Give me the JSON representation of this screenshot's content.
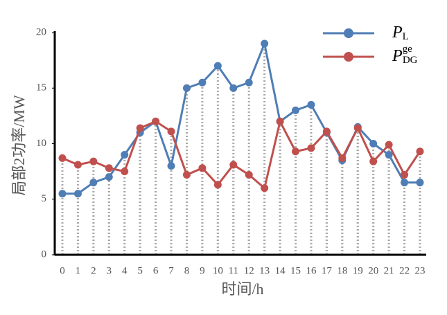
{
  "chart_data": {
    "type": "line",
    "categories": [
      "0",
      "1",
      "2",
      "3",
      "4",
      "5",
      "6",
      "7",
      "8",
      "9",
      "10",
      "11",
      "12",
      "13",
      "14",
      "15",
      "16",
      "17",
      "18",
      "19",
      "20",
      "21",
      "22",
      "23"
    ],
    "series": [
      {
        "name": "P",
        "subscript": "L",
        "color": "#4f7db5",
        "values": [
          5.5,
          5.5,
          6.5,
          7,
          9,
          11,
          12,
          8,
          15,
          15.5,
          17,
          15,
          15.5,
          19,
          12,
          13,
          13.5,
          11,
          8.5,
          11.5,
          10,
          9,
          6.5,
          6.5
        ]
      },
      {
        "name": "P",
        "superscript": "ge",
        "subscript": "DG",
        "color": "#c0504d",
        "values": [
          8.7,
          8.1,
          8.4,
          7.8,
          7.5,
          11.4,
          12,
          11.1,
          7.2,
          7.8,
          6.3,
          8.1,
          7.2,
          6,
          12,
          9.3,
          9.6,
          11.1,
          8.7,
          11.4,
          8.4,
          9.9,
          7.2,
          9.3
        ]
      }
    ],
    "ylabel": "局部2功率/MW",
    "xlabel": "时间/h",
    "ylim": [
      0,
      20
    ],
    "yticks": [
      0,
      5,
      10,
      15,
      20
    ],
    "grid": false,
    "legend": "upper right"
  }
}
